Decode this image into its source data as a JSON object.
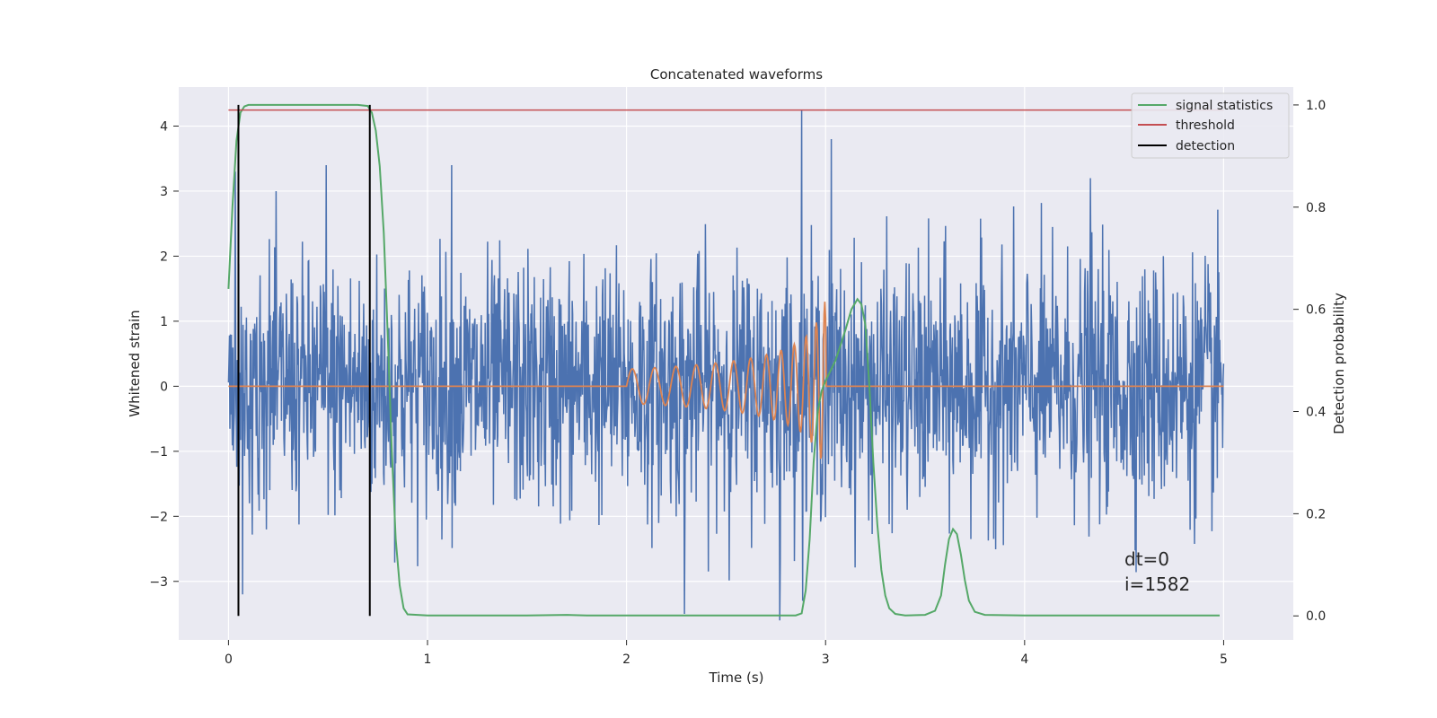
{
  "chart_data": {
    "type": "line",
    "title": "Concatenated waveforms",
    "xlabel": "Time (s)",
    "ylabel": "Whitened strain",
    "y2label": "Detection probability",
    "xlim": [
      -0.25,
      5.35
    ],
    "ylim": [
      -3.9,
      4.6
    ],
    "y2lim": [
      -0.047,
      1.035
    ],
    "xticks": [
      0,
      1,
      2,
      3,
      4,
      5
    ],
    "yticks": [
      -3,
      -2,
      -1,
      0,
      1,
      2,
      3,
      4
    ],
    "y2ticks": [
      0.0,
      0.2,
      0.4,
      0.6,
      0.8,
      1.0
    ],
    "grid": true,
    "legend_position": "top-right",
    "series": [
      {
        "name": "",
        "kind": "noise",
        "axis": "left",
        "color": "#4c72b0",
        "x_range": [
          0,
          5
        ],
        "samples": 2048,
        "approx_std": 1.0,
        "notable_peaks": [
          {
            "x": 0.49,
            "y": 3.4
          },
          {
            "x": 1.12,
            "y": 3.4
          },
          {
            "x": 2.88,
            "y": 4.25
          },
          {
            "x": 3.03,
            "y": 3.8
          },
          {
            "x": 4.33,
            "y": 3.2
          },
          {
            "x": 2.77,
            "y": -3.6
          },
          {
            "x": 2.29,
            "y": -3.5
          },
          {
            "x": 0.07,
            "y": -3.2
          }
        ]
      },
      {
        "name": "",
        "kind": "chirp",
        "axis": "left",
        "color": "#dd8452",
        "flat_value": 0,
        "chirp_start": 2.0,
        "chirp_end": 3.0,
        "peak_amplitude": 1.3,
        "x_range": [
          0,
          5
        ]
      },
      {
        "name": "signal statistics",
        "axis": "right",
        "color": "#55a868",
        "x": [
          0.0,
          0.02,
          0.04,
          0.06,
          0.08,
          0.1,
          0.15,
          0.3,
          0.5,
          0.65,
          0.7,
          0.72,
          0.74,
          0.76,
          0.78,
          0.8,
          0.82,
          0.84,
          0.86,
          0.88,
          0.9,
          1.0,
          1.5,
          1.7,
          1.8,
          2.0,
          2.5,
          2.8,
          2.85,
          2.88,
          2.9,
          2.92,
          2.94,
          2.96,
          2.98,
          3.0,
          3.05,
          3.1,
          3.13,
          3.16,
          3.18,
          3.2,
          3.22,
          3.24,
          3.26,
          3.28,
          3.3,
          3.32,
          3.35,
          3.4,
          3.5,
          3.55,
          3.58,
          3.6,
          3.62,
          3.64,
          3.66,
          3.68,
          3.7,
          3.72,
          3.75,
          3.8,
          4.0,
          4.5,
          4.98
        ],
        "values": [
          0.64,
          0.8,
          0.93,
          0.985,
          0.997,
          1.0,
          1.0,
          1.0,
          1.0,
          1.0,
          0.998,
          0.985,
          0.95,
          0.88,
          0.75,
          0.55,
          0.33,
          0.15,
          0.06,
          0.015,
          0.003,
          0.001,
          0.001,
          0.002,
          0.001,
          0.001,
          0.001,
          0.001,
          0.001,
          0.005,
          0.05,
          0.15,
          0.3,
          0.4,
          0.44,
          0.46,
          0.5,
          0.56,
          0.6,
          0.62,
          0.61,
          0.57,
          0.45,
          0.3,
          0.18,
          0.09,
          0.04,
          0.015,
          0.004,
          0.001,
          0.002,
          0.01,
          0.04,
          0.1,
          0.15,
          0.17,
          0.16,
          0.12,
          0.07,
          0.03,
          0.008,
          0.002,
          0.001,
          0.001,
          0.001
        ]
      },
      {
        "name": "threshold",
        "axis": "right",
        "color": "#c44e52",
        "x": [
          0.0,
          5.0
        ],
        "values": [
          0.99,
          0.99
        ]
      },
      {
        "name": "detection",
        "axis": "right",
        "color": "#000000",
        "kind": "vlines",
        "x": [
          0.05,
          0.71
        ],
        "y_range": [
          0.0,
          1.0
        ]
      }
    ],
    "annotations": [
      "dt=0",
      "i=1582"
    ]
  }
}
